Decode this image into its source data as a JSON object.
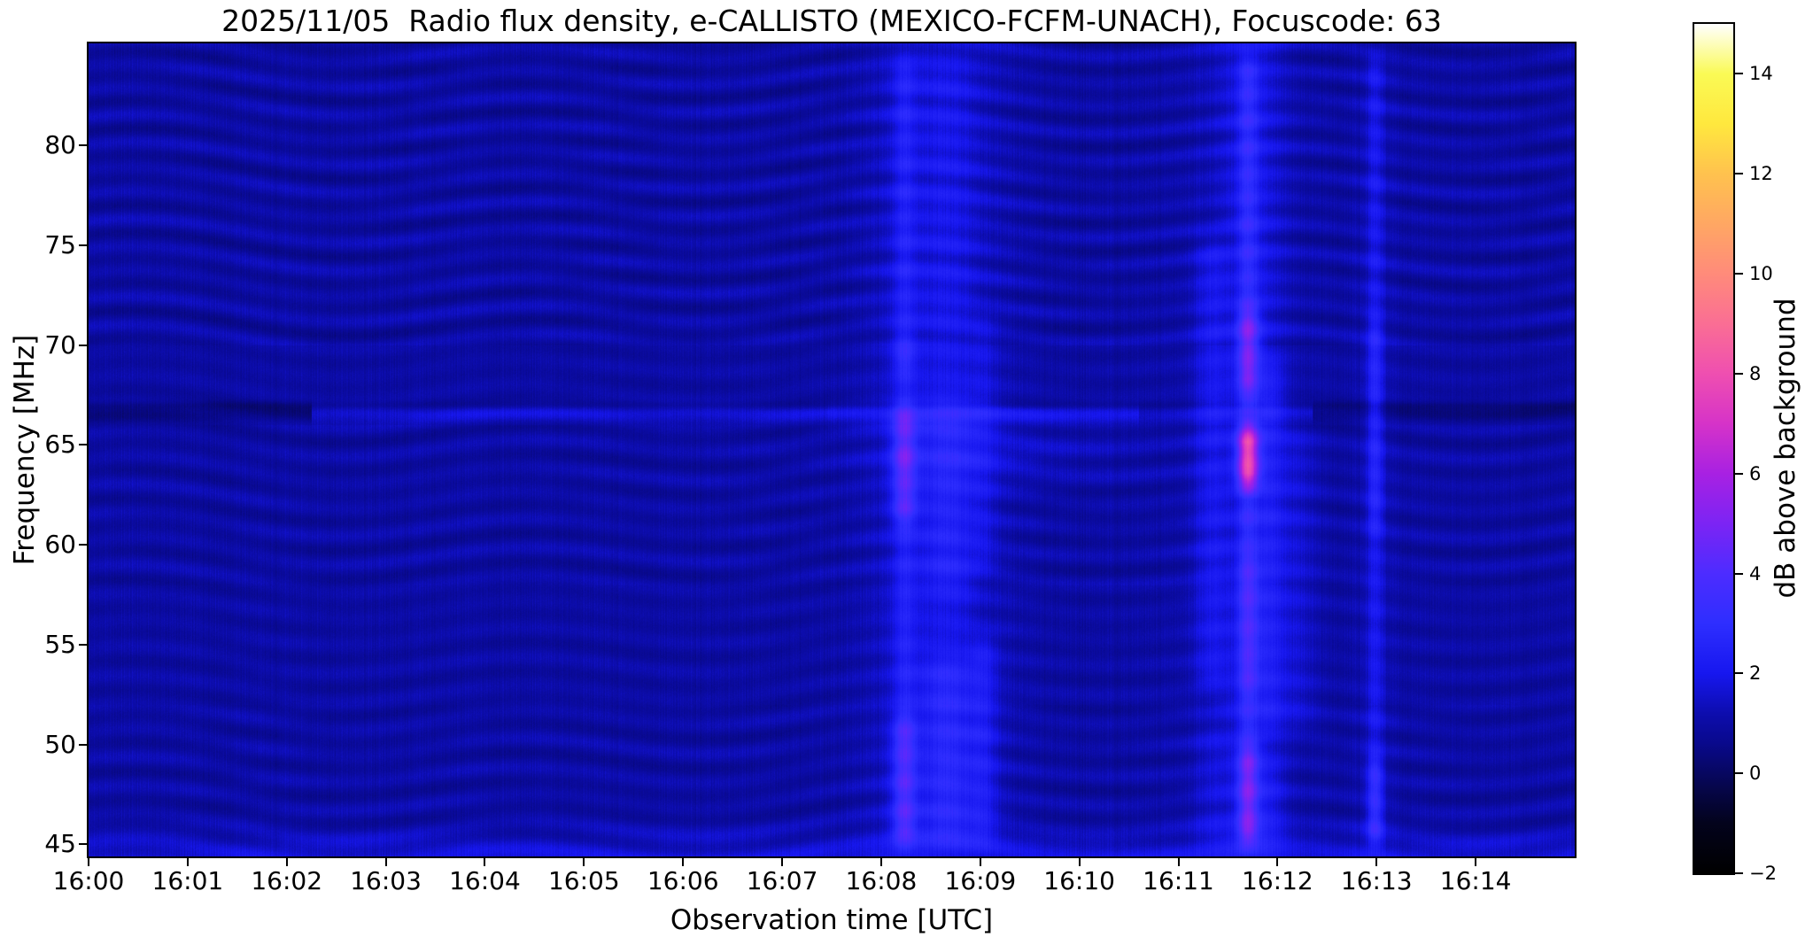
{
  "chart_data": {
    "type": "heatmap",
    "title": "2025/11/05  Radio flux density, e-CALLISTO (MEXICO-FCFM-UNACH), Focuscode: 63",
    "instrument": "e-CALLISTO radio spectrometer dynamic spectrum",
    "x_axis": {
      "label": "Observation time [UTC]",
      "start_utc": "16:00",
      "end_utc": "16:15",
      "minutes_span": 15,
      "ticks": [
        {
          "minute": 0,
          "label": "16:00"
        },
        {
          "minute": 1,
          "label": "16:01"
        },
        {
          "minute": 2,
          "label": "16:02"
        },
        {
          "minute": 3,
          "label": "16:03"
        },
        {
          "minute": 4,
          "label": "16:04"
        },
        {
          "minute": 5,
          "label": "16:05"
        },
        {
          "minute": 6,
          "label": "16:06"
        },
        {
          "minute": 7,
          "label": "16:07"
        },
        {
          "minute": 8,
          "label": "16:08"
        },
        {
          "minute": 9,
          "label": "16:09"
        },
        {
          "minute": 10,
          "label": "16:10"
        },
        {
          "minute": 11,
          "label": "16:11"
        },
        {
          "minute": 12,
          "label": "16:12"
        },
        {
          "minute": 13,
          "label": "16:13"
        },
        {
          "minute": 14,
          "label": "16:14"
        }
      ]
    },
    "y_axis": {
      "label": "Frequency [MHz]",
      "min_mhz": 44.4,
      "max_mhz": 85.1,
      "ticks": [
        {
          "value": 80,
          "label": "80"
        },
        {
          "value": 75,
          "label": "75"
        },
        {
          "value": 70,
          "label": "70"
        },
        {
          "value": 65,
          "label": "65"
        },
        {
          "value": 60,
          "label": "60"
        },
        {
          "value": 55,
          "label": "55"
        },
        {
          "value": 50,
          "label": "50"
        },
        {
          "value": 45,
          "label": "45"
        }
      ]
    },
    "colorbar": {
      "label": "dB above background",
      "min_db": -2,
      "max_db": 15,
      "ticks": [
        {
          "value": 14,
          "label": "14"
        },
        {
          "value": 12,
          "label": "12"
        },
        {
          "value": 10,
          "label": "10"
        },
        {
          "value": 8,
          "label": "8"
        },
        {
          "value": 6,
          "label": "6"
        },
        {
          "value": 4,
          "label": "4"
        },
        {
          "value": 2,
          "label": "2"
        },
        {
          "value": 0,
          "label": "0"
        },
        {
          "value": -2,
          "label": "−2"
        }
      ],
      "colormap_stops": [
        {
          "db": -2.0,
          "color": "#000000"
        },
        {
          "db": -1.0,
          "color": "#03031c"
        },
        {
          "db": -0.3,
          "color": "#06064a"
        },
        {
          "db": 0.6,
          "color": "#09098c"
        },
        {
          "db": 1.2,
          "color": "#0d0dae"
        },
        {
          "db": 2.0,
          "color": "#1717ef"
        },
        {
          "db": 3.0,
          "color": "#2e2eff"
        },
        {
          "db": 4.0,
          "color": "#4d2cff"
        },
        {
          "db": 5.0,
          "color": "#7c24f4"
        },
        {
          "db": 6.0,
          "color": "#a821e2"
        },
        {
          "db": 7.0,
          "color": "#d633c8"
        },
        {
          "db": 8.0,
          "color": "#ef4fb0"
        },
        {
          "db": 9.0,
          "color": "#fa6e94"
        },
        {
          "db": 10.0,
          "color": "#ff8b7a"
        },
        {
          "db": 11.0,
          "color": "#ffa763"
        },
        {
          "db": 12.0,
          "color": "#ffc24e"
        },
        {
          "db": 13.0,
          "color": "#ffe83e"
        },
        {
          "db": 14.0,
          "color": "#fafa55"
        },
        {
          "db": 15.0,
          "color": "#ffffff"
        }
      ]
    },
    "background_texture": {
      "base_db": 1.0,
      "description": "quiet blue background with fine vertical striations and wavy moire interference fringes",
      "fringe_bands": [
        {
          "f1": 70.0,
          "f2": 85.1,
          "amp": 0.3
        },
        {
          "f1": 66.0,
          "f2": 70.0,
          "amp": 0.14
        },
        {
          "f1": 58.0,
          "f2": 66.0,
          "amp": 0.24
        },
        {
          "f1": 52.0,
          "f2": 58.0,
          "amp": 0.17
        },
        {
          "f1": 44.4,
          "f2": 52.0,
          "amp": 0.24
        }
      ],
      "striation_amp": 0.15,
      "grain_amp": 0.1
    },
    "carrier_line": {
      "freq_mhz": 66.6,
      "sigma_mhz": 0.3,
      "description": "narrowband carrier at ~66.6 MHz: dark 16:00-16:02 and after 16:12.4, enhanced 16:02-16:10.6",
      "segments": [
        {
          "t1": 0.0,
          "t2": 2.25,
          "amp_db": -0.55
        },
        {
          "t1": 2.25,
          "t2": 7.45,
          "amp_db": 0.75
        },
        {
          "t1": 7.45,
          "t2": 10.6,
          "amp_db": 1.0
        },
        {
          "t1": 10.6,
          "t2": 12.35,
          "amp_db": 0.45
        },
        {
          "t1": 12.35,
          "t2": 15.0,
          "amp_db": -0.55
        }
      ],
      "dark_edge": {
        "freq_mhz": 67.0,
        "sigma_mhz": 0.16,
        "amp_db": -0.4
      }
    },
    "events": [
      {
        "time_utc": "16:08:14",
        "t_min": 8.23,
        "core_sigma_s": 5,
        "glow_sigma_s": 18,
        "glow_amp": 0.45,
        "bands": [
          {
            "f1": 44.4,
            "f2": 85.1,
            "amp": 0.9
          },
          {
            "f1": 60.5,
            "f2": 67.5,
            "amp": 1.7
          },
          {
            "f1": 63.5,
            "f2": 65.2,
            "amp": 0.9
          },
          {
            "f1": 44.4,
            "f2": 52.0,
            "amp": 1.5
          },
          {
            "f1": 68.0,
            "f2": 71.0,
            "amp": 0.7
          }
        ]
      },
      {
        "time_utc": "16:08:40",
        "t_min": 8.66,
        "core_sigma_s": 12,
        "glow_sigma_s": 26,
        "glow_amp": 0.35,
        "bands": [
          {
            "f1": 44.4,
            "f2": 85.1,
            "amp": 0.5
          },
          {
            "f1": 44.4,
            "f2": 55.0,
            "amp": 0.8
          },
          {
            "f1": 57.0,
            "f2": 68.0,
            "amp": 0.55
          }
        ]
      },
      {
        "time_utc": "16:09:02",
        "t_min": 9.03,
        "core_sigma_s": 6,
        "glow_sigma_s": 15,
        "glow_amp": 0.2,
        "bands": [
          {
            "f1": 44.4,
            "f2": 56.0,
            "amp": 0.8
          },
          {
            "f1": 58.0,
            "f2": 72.0,
            "amp": 0.4
          }
        ]
      },
      {
        "time_utc": "16:09:09",
        "t_min": 9.15,
        "core_sigma_s": 60,
        "glow_sigma_s": 1,
        "glow_amp": 0.0,
        "bands": [
          {
            "f1": 62.6,
            "f2": 66.6,
            "amp": 0.4
          }
        ]
      },
      {
        "time_utc": "16:11:19",
        "t_min": 11.32,
        "core_sigma_s": 7,
        "glow_sigma_s": 16,
        "glow_amp": 0.25,
        "bands": [
          {
            "f1": 52.0,
            "f2": 76.0,
            "amp": 0.7
          },
          {
            "f1": 44.4,
            "f2": 52.0,
            "amp": 0.35
          }
        ]
      },
      {
        "time_utc": "16:11:42",
        "t_min": 11.7,
        "core_sigma_s": 4.5,
        "glow_sigma_s": 14,
        "glow_amp": 0.7,
        "bands": [
          {
            "f1": 44.4,
            "f2": 85.1,
            "amp": 1.3
          },
          {
            "f1": 62.3,
            "f2": 66.5,
            "amp": 4.8
          },
          {
            "f1": 67.0,
            "f2": 72.5,
            "amp": 1.9
          },
          {
            "f1": 44.4,
            "f2": 50.5,
            "amp": 1.9
          },
          {
            "f1": 52.0,
            "f2": 60.0,
            "amp": 0.8
          }
        ]
      },
      {
        "time_utc": "16:11:56",
        "t_min": 11.93,
        "core_sigma_s": 6,
        "glow_sigma_s": 12,
        "glow_amp": 0.3,
        "bands": [
          {
            "f1": 50.0,
            "f2": 70.0,
            "amp": 0.65
          },
          {
            "f1": 44.4,
            "f2": 50.0,
            "amp": 0.45
          }
        ]
      },
      {
        "time_utc": "16:12:13",
        "t_min": 12.22,
        "core_sigma_s": 8,
        "glow_sigma_s": 1,
        "glow_amp": 0.0,
        "bands": [
          {
            "f1": 50.0,
            "f2": 66.5,
            "amp": 0.5
          }
        ]
      },
      {
        "time_utc": "16:12:59",
        "t_min": 12.98,
        "core_sigma_s": 3.5,
        "glow_sigma_s": 9,
        "glow_amp": 0.25,
        "bands": [
          {
            "f1": 44.4,
            "f2": 85.1,
            "amp": 0.85
          },
          {
            "f1": 44.4,
            "f2": 50.0,
            "amp": 1.1
          },
          {
            "f1": 60.0,
            "f2": 72.0,
            "amp": 0.6
          }
        ]
      }
    ]
  }
}
